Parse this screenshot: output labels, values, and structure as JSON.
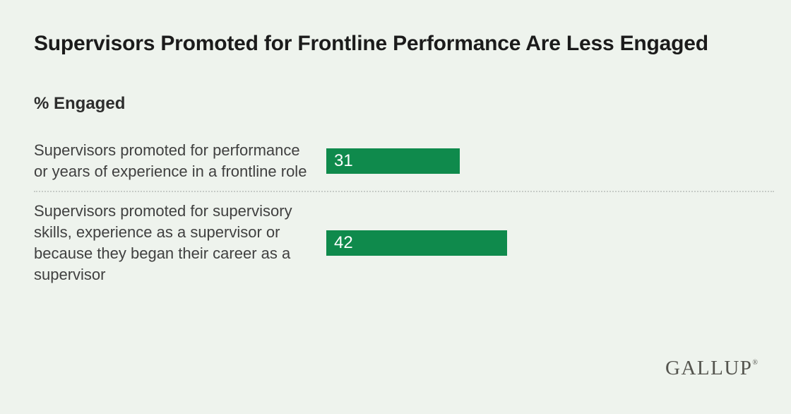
{
  "page": {
    "background_color": "#eef3ed"
  },
  "title": "Supervisors Promoted for Frontline Performance Are Less Engaged",
  "subtitle": "% Engaged",
  "chart_data": {
    "type": "bar",
    "orientation": "horizontal",
    "title": "Supervisors Promoted for Frontline Performance Are Less Engaged",
    "xlabel": "",
    "ylabel": "% Engaged",
    "categories": [
      "Supervisors promoted for performance or years of experience in a frontline role",
      "Supervisors promoted for supervisory skills, experience as a supervisor or because they began their career as a supervisor"
    ],
    "values": [
      31,
      42
    ],
    "xlim": [
      0,
      100
    ],
    "grid": false,
    "legend": false,
    "bar_color": "#0f8a4c",
    "value_label_color": "#ffffff",
    "value_labels_inside_bar": true
  },
  "branding": {
    "logo_text": "GALLUP",
    "registered_mark": "®"
  }
}
